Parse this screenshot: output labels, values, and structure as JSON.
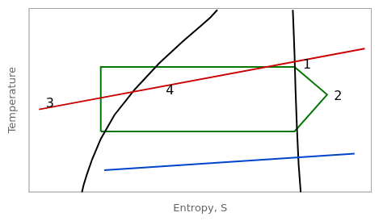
{
  "chart_data": {
    "type": "line",
    "xlabel": "Entropy, S",
    "ylabel": "Temperature",
    "xlim": [
      0,
      10
    ],
    "ylim": [
      0,
      10
    ],
    "tick_labels": false,
    "grid": false,
    "series": [
      {
        "color": "#cc0000",
        "x": [
          0.3,
          9.8
        ],
        "values": [
          4.5,
          7.8
        ]
      },
      {
        "color": "#0044cc",
        "x": [
          2.2,
          9.5
        ],
        "values": [
          1.2,
          2.1
        ]
      },
      {
        "color": "black",
        "x": [
          1.55,
          1.6,
          1.7,
          1.85,
          2.1,
          2.5,
          3.1,
          3.8,
          4.5,
          5.0,
          5.3,
          5.5
        ],
        "values": [
          0.0,
          0.4,
          1.0,
          1.8,
          2.9,
          4.2,
          5.6,
          7.0,
          8.2,
          9.0,
          9.5,
          9.9
        ]
      },
      {
        "color": "black",
        "x": [
          7.7,
          7.72,
          7.75,
          7.78,
          7.82,
          7.87,
          7.93
        ],
        "values": [
          9.9,
          9.0,
          7.5,
          5.5,
          3.5,
          1.5,
          0.0
        ]
      },
      {
        "color": "#007700",
        "x": [
          2.1,
          7.75,
          8.7,
          7.75,
          2.1,
          2.1
        ],
        "values": [
          3.3,
          3.3,
          5.3,
          6.8,
          6.8,
          3.3
        ]
      }
    ],
    "annotations": [
      {
        "text": "1",
        "x": 8.0,
        "y": 6.9
      },
      {
        "text": "2",
        "x": 8.9,
        "y": 5.2
      },
      {
        "text": "3",
        "x": 0.5,
        "y": 4.8
      },
      {
        "text": "4",
        "x": 4.0,
        "y": 5.5
      }
    ]
  }
}
